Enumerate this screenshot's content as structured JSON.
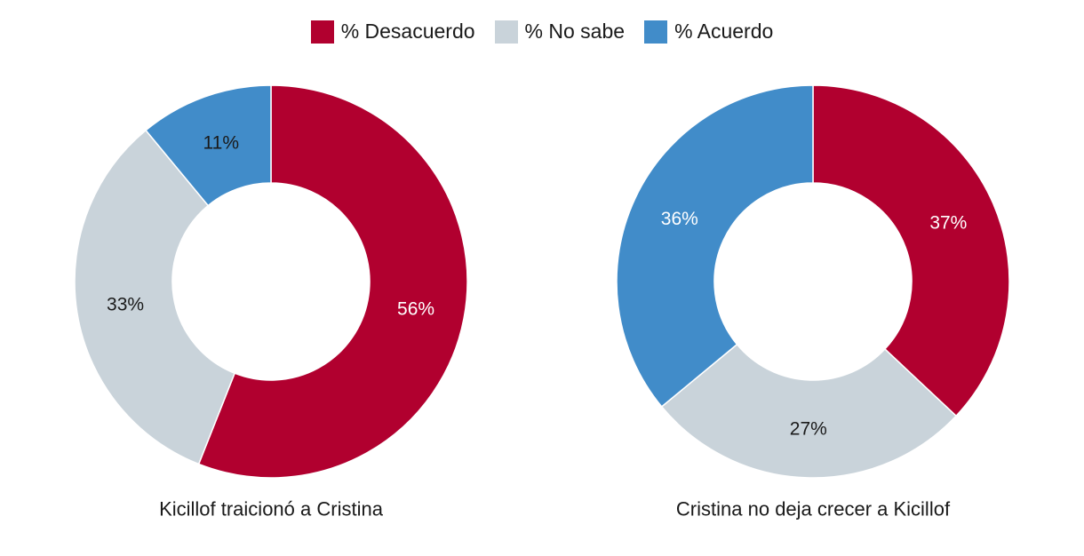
{
  "legend": [
    {
      "label": "% Desacuerdo",
      "color": "#B1002F"
    },
    {
      "label": "% No sabe",
      "color": "#C9D3DA"
    },
    {
      "label": "% Acuerdo",
      "color": "#418CC9"
    }
  ],
  "chart_data": [
    {
      "type": "pie",
      "title": "Kicillof traicionó a Cristina",
      "categories": [
        "% Desacuerdo",
        "% No sabe",
        "% Acuerdo"
      ],
      "values": [
        56,
        33,
        11
      ],
      "labels": [
        "56%",
        "33%",
        "11%"
      ],
      "label_colors": [
        "#ffffff",
        "#1a1a1a",
        "#1a1a1a"
      ]
    },
    {
      "type": "pie",
      "title": "Cristina no deja crecer a Kicillof",
      "categories": [
        "% Desacuerdo",
        "% No sabe",
        "% Acuerdo"
      ],
      "values": [
        37,
        27,
        36
      ],
      "labels": [
        "37%",
        "27%",
        "36%"
      ],
      "label_colors": [
        "#ffffff",
        "#1a1a1a",
        "#ffffff"
      ]
    }
  ]
}
